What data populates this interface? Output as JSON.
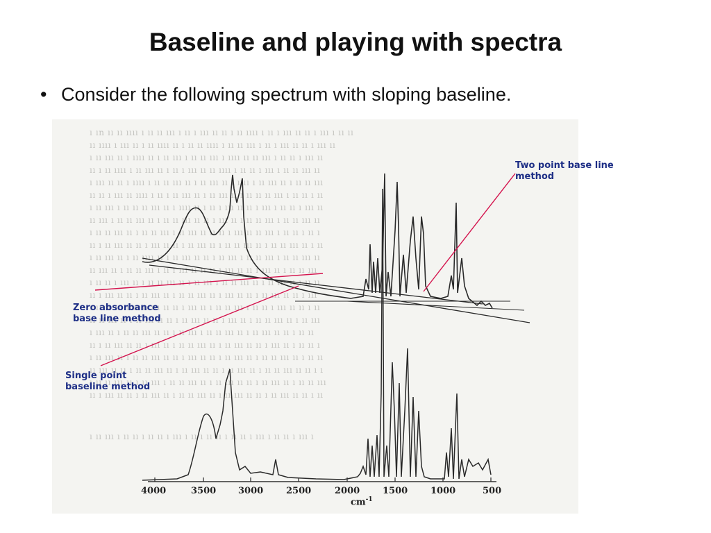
{
  "slide": {
    "title": "Baseline and playing with spectra",
    "bullet": "Consider the following spectrum with sloping baseline."
  },
  "annotations": {
    "two_point": "Two point base line\nmethod",
    "zero_absorbance": "Zero absorbance\nbase line method",
    "single_point": "Single point\nbaseline method"
  },
  "x_axis": {
    "ticks": [
      "4000",
      "3500",
      "3000",
      "2500",
      "2000",
      "1500",
      "1000",
      "500"
    ],
    "unit_label": "cm",
    "unit_exponent": "-1"
  },
  "colors": {
    "annotation_pointer": "#d4144e",
    "annotation_text": "#1e2f86",
    "spectrum_line": "#2a2a2a"
  }
}
